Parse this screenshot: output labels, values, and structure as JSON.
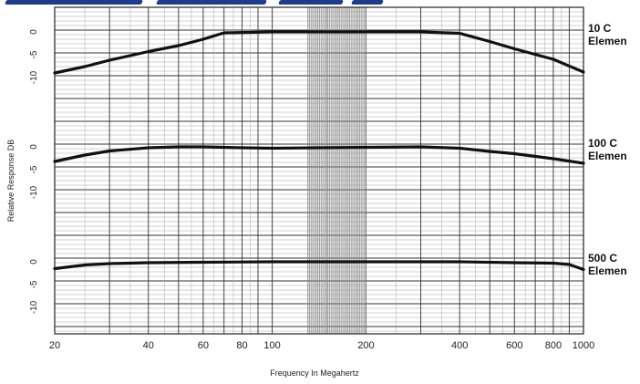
{
  "chart_data": {
    "type": "line",
    "xlabel": "Frequency In Megahertz",
    "ylabel": "Relative Response DB",
    "x_scale": "log",
    "xlim": [
      20,
      1000
    ],
    "x_ticks": [
      20,
      40,
      60,
      80,
      100,
      200,
      400,
      600,
      800,
      1000
    ],
    "x_tick_labels": [
      "20",
      "40",
      "60",
      "80",
      "100",
      "200",
      "400",
      "600",
      "800",
      "1000"
    ],
    "y_ticks": [
      0,
      -5,
      -10
    ],
    "y_tick_labels": [
      "0",
      "-5",
      "-10"
    ],
    "grid": true,
    "series": [
      {
        "name": "10 C Elemen",
        "label_lines": [
          "10 C",
          "Elemen"
        ],
        "x": [
          20,
          25,
          30,
          40,
          50,
          60,
          70,
          100,
          200,
          300,
          400,
          500,
          600,
          800,
          1000
        ],
        "y": [
          -9.0,
          -7.6,
          -6.2,
          -4.3,
          -3.0,
          -1.6,
          -0.2,
          0.0,
          0.0,
          0.0,
          -0.3,
          -2.1,
          -3.7,
          -6.0,
          -8.8
        ]
      },
      {
        "name": "100 C Elemen",
        "label_lines": [
          "100 C",
          "Elemen"
        ],
        "x": [
          20,
          25,
          30,
          40,
          50,
          60,
          80,
          100,
          200,
          300,
          400,
          500,
          600,
          800,
          1000
        ],
        "y": [
          -3.2,
          -1.8,
          -0.9,
          -0.2,
          0.0,
          0.0,
          -0.2,
          -0.3,
          -0.1,
          0.0,
          -0.3,
          -1.0,
          -1.5,
          -2.6,
          -3.6
        ]
      },
      {
        "name": "500 C Elemen",
        "label_lines": [
          "500 C",
          "Elemen"
        ],
        "x": [
          20,
          25,
          30,
          40,
          60,
          100,
          200,
          400,
          600,
          800,
          900,
          1000
        ],
        "y": [
          -1.5,
          -0.7,
          -0.4,
          -0.2,
          -0.1,
          0.0,
          0.0,
          0.0,
          -0.2,
          -0.3,
          -0.6,
          -1.7
        ]
      }
    ],
    "colors": {
      "line": "#111111",
      "grid": "#888888",
      "dense_band": "#6e6e6e",
      "title_strip": "#1e3c8c"
    }
  }
}
